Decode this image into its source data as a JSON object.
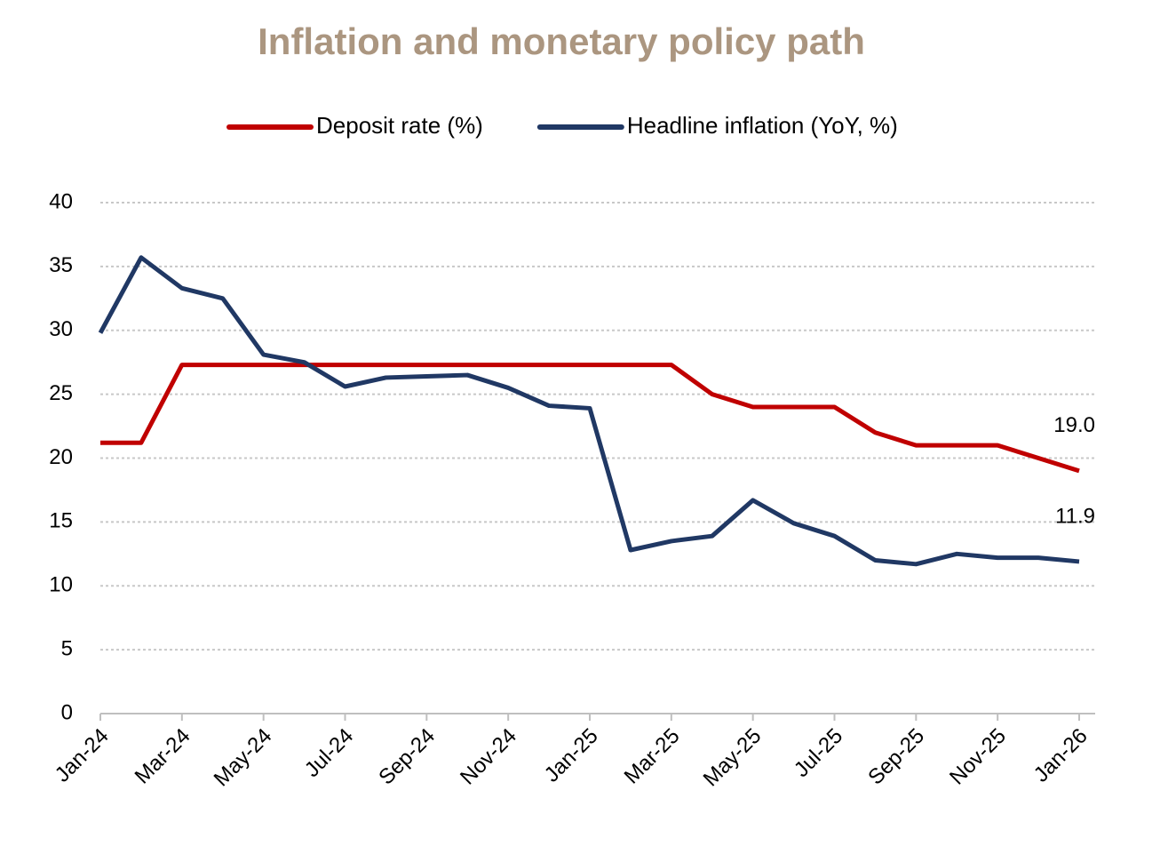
{
  "chart_data": {
    "type": "line",
    "title": "Inflation and monetary policy path",
    "categories": [
      "Jan-24",
      null,
      "Mar-24",
      null,
      "May-24",
      null,
      "Jul-24",
      null,
      "Sep-24",
      null,
      "Nov-24",
      null,
      "Jan-25",
      null,
      "Mar-25",
      null,
      "May-25",
      null,
      "Jul-25",
      null,
      "Sep-25",
      null,
      "Nov-25",
      null,
      "Jan-26"
    ],
    "series": [
      {
        "name": "Deposit rate (%)",
        "color": "#c00000",
        "values": [
          21.2,
          21.2,
          27.3,
          27.3,
          27.3,
          27.3,
          27.3,
          27.3,
          27.3,
          27.3,
          27.3,
          27.3,
          27.3,
          27.3,
          27.3,
          25,
          24,
          24,
          24,
          22,
          21,
          21,
          21,
          20,
          19.0
        ],
        "value_labels": [
          null,
          null,
          null,
          null,
          null,
          null,
          null,
          null,
          null,
          null,
          null,
          null,
          null,
          null,
          null,
          null,
          null,
          null,
          null,
          null,
          null,
          null,
          null,
          null,
          "19.0"
        ]
      },
      {
        "name": "Headline inflation (YoY, %)",
        "color": "#203864",
        "values": [
          29.8,
          35.7,
          33.3,
          32.5,
          28.1,
          27.5,
          25.6,
          26.3,
          26.4,
          26.5,
          25.5,
          24.1,
          23.9,
          12.8,
          13.5,
          13.9,
          16.7,
          14.9,
          13.9,
          12.0,
          11.7,
          12.5,
          12.2,
          12.2,
          11.9
        ],
        "value_labels": [
          null,
          null,
          null,
          null,
          null,
          null,
          null,
          null,
          null,
          null,
          null,
          null,
          null,
          null,
          null,
          null,
          null,
          null,
          null,
          null,
          null,
          null,
          null,
          null,
          "11.9"
        ]
      }
    ],
    "ylim": [
      0,
      40
    ],
    "yticks": [
      0,
      5,
      10,
      15,
      20,
      25,
      30,
      35,
      40
    ],
    "grid": true,
    "legend": "top"
  }
}
